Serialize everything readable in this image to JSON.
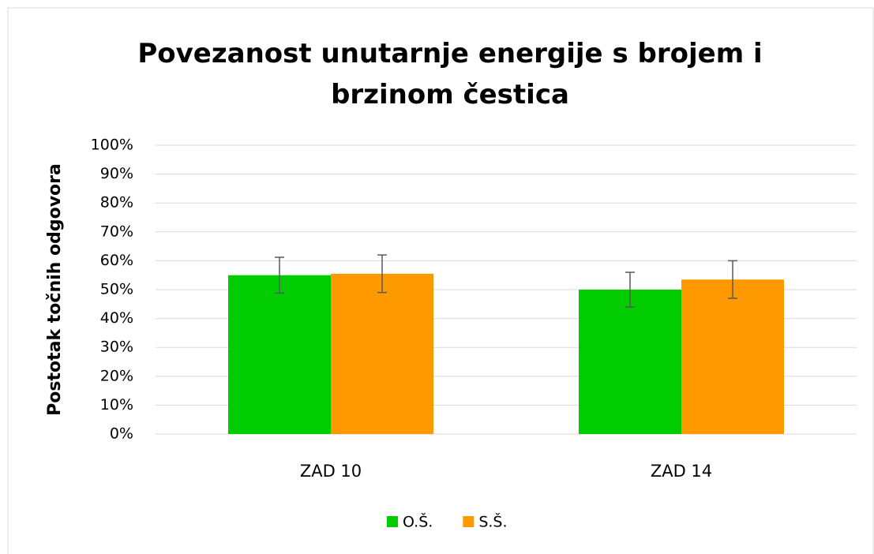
{
  "chart_data": {
    "type": "bar",
    "title": "Povezanost unutarnje energije s brojem i brzinom čestica",
    "y_label": "Postotak točnih odgovora",
    "categories": [
      "ZAD 10",
      "ZAD 14"
    ],
    "series": [
      {
        "name": "O.Š.",
        "color": "#00cc00",
        "values": [
          55,
          50
        ],
        "errors": [
          6.2,
          6
        ]
      },
      {
        "name": "S.Š.",
        "color": "#ff9900",
        "values": [
          55.5,
          53.5
        ],
        "errors": [
          6.5,
          6.5
        ]
      }
    ],
    "ylim": [
      0,
      100
    ],
    "yticks": [
      {
        "value": 0,
        "label": "0%"
      },
      {
        "value": 10,
        "label": "10%"
      },
      {
        "value": 20,
        "label": "20%"
      },
      {
        "value": 30,
        "label": "30%"
      },
      {
        "value": 40,
        "label": "40%"
      },
      {
        "value": 50,
        "label": "50%"
      },
      {
        "value": 60,
        "label": "60%"
      },
      {
        "value": 70,
        "label": "70%"
      },
      {
        "value": 80,
        "label": "80%"
      },
      {
        "value": 90,
        "label": "90%"
      },
      {
        "value": 100,
        "label": "100%"
      }
    ],
    "grid": true,
    "legend": "bottom"
  }
}
